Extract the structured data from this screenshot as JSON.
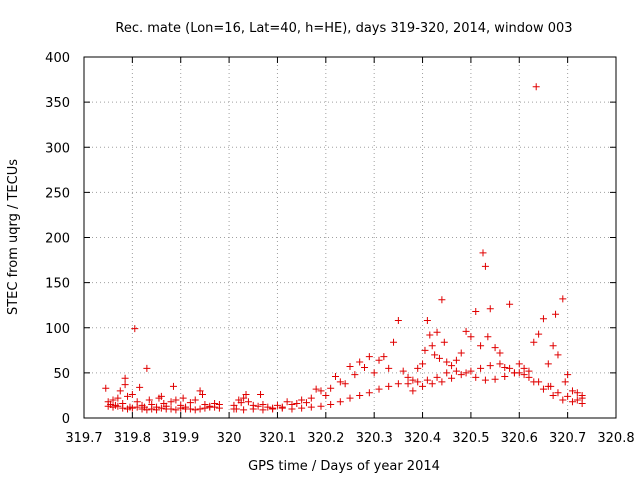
{
  "chart_data": {
    "type": "scatter",
    "title": "Rec. mate (Lon=16, Lat=40, h=HE), days 319-320, 2014, window 003",
    "xlabel": "GPS time / Days of year 2014",
    "ylabel": "STEC from uqrg / TECUs",
    "xlim": [
      319.7,
      320.8
    ],
    "ylim": [
      0,
      400
    ],
    "xticks": [
      "319.7",
      "319.8",
      "319.9",
      "320",
      "320.1",
      "320.2",
      "320.3",
      "320.4",
      "320.5",
      "320.6",
      "320.7",
      "320.8"
    ],
    "yticks": [
      "0",
      "50",
      "100",
      "150",
      "200",
      "250",
      "300",
      "350",
      "400"
    ],
    "grid": true,
    "marker": "+",
    "color": "#e00000",
    "series": [
      {
        "name": "STEC",
        "points": [
          [
            319.745,
            33
          ],
          [
            319.75,
            18
          ],
          [
            319.755,
            15
          ],
          [
            319.76,
            20
          ],
          [
            319.765,
            14
          ],
          [
            319.77,
            22
          ],
          [
            319.775,
            30
          ],
          [
            319.78,
            16
          ],
          [
            319.785,
            37
          ],
          [
            319.785,
            44
          ],
          [
            319.79,
            24
          ],
          [
            319.795,
            12
          ],
          [
            319.8,
            26
          ],
          [
            319.805,
            99
          ],
          [
            319.81,
            18
          ],
          [
            319.815,
            34
          ],
          [
            319.82,
            14
          ],
          [
            319.825,
            12
          ],
          [
            319.83,
            55
          ],
          [
            319.835,
            20
          ],
          [
            319.84,
            15
          ],
          [
            319.85,
            12
          ],
          [
            319.855,
            22
          ],
          [
            319.86,
            24
          ],
          [
            319.865,
            16
          ],
          [
            319.87,
            13
          ],
          [
            319.88,
            18
          ],
          [
            319.885,
            35
          ],
          [
            319.89,
            20
          ],
          [
            319.9,
            14
          ],
          [
            319.905,
            22
          ],
          [
            319.91,
            12
          ],
          [
            319.92,
            17
          ],
          [
            319.93,
            20
          ],
          [
            319.94,
            30
          ],
          [
            319.945,
            26
          ],
          [
            319.95,
            15
          ],
          [
            319.96,
            13
          ],
          [
            319.97,
            16
          ],
          [
            319.98,
            15
          ],
          [
            319.75,
            13
          ],
          [
            319.76,
            12
          ],
          [
            319.77,
            13
          ],
          [
            319.78,
            11
          ],
          [
            319.79,
            10
          ],
          [
            319.8,
            11
          ],
          [
            319.81,
            12
          ],
          [
            319.82,
            10
          ],
          [
            319.83,
            9
          ],
          [
            319.84,
            10
          ],
          [
            319.85,
            9
          ],
          [
            319.86,
            11
          ],
          [
            319.87,
            10
          ],
          [
            319.88,
            10
          ],
          [
            319.89,
            9
          ],
          [
            319.9,
            11
          ],
          [
            319.91,
            10
          ],
          [
            319.92,
            10
          ],
          [
            319.93,
            9
          ],
          [
            319.94,
            10
          ],
          [
            319.95,
            11
          ],
          [
            319.96,
            12
          ],
          [
            319.97,
            12
          ],
          [
            319.98,
            11
          ],
          [
            320.01,
            14
          ],
          [
            320.015,
            10
          ],
          [
            320.02,
            20
          ],
          [
            320.025,
            17
          ],
          [
            320.03,
            22
          ],
          [
            320.035,
            26
          ],
          [
            320.04,
            18
          ],
          [
            320.05,
            14
          ],
          [
            320.06,
            13
          ],
          [
            320.065,
            26
          ],
          [
            320.07,
            15
          ],
          [
            320.08,
            12
          ],
          [
            320.09,
            11
          ],
          [
            320.1,
            14
          ],
          [
            320.11,
            12
          ],
          [
            320.12,
            18
          ],
          [
            320.13,
            15
          ],
          [
            320.14,
            16
          ],
          [
            320.15,
            20
          ],
          [
            320.16,
            17
          ],
          [
            320.17,
            22
          ],
          [
            320.18,
            32
          ],
          [
            320.19,
            30
          ],
          [
            320.2,
            25
          ],
          [
            320.21,
            33
          ],
          [
            320.22,
            46
          ],
          [
            320.23,
            40
          ],
          [
            320.24,
            38
          ],
          [
            320.25,
            57
          ],
          [
            320.26,
            48
          ],
          [
            320.27,
            62
          ],
          [
            320.28,
            56
          ],
          [
            320.29,
            68
          ],
          [
            320.3,
            50
          ],
          [
            320.31,
            64
          ],
          [
            320.32,
            68
          ],
          [
            320.33,
            55
          ],
          [
            320.34,
            84
          ],
          [
            320.35,
            108
          ],
          [
            320.36,
            52
          ],
          [
            320.01,
            10
          ],
          [
            320.03,
            9
          ],
          [
            320.05,
            10
          ],
          [
            320.07,
            9
          ],
          [
            320.09,
            10
          ],
          [
            320.11,
            11
          ],
          [
            320.13,
            10
          ],
          [
            320.15,
            11
          ],
          [
            320.17,
            12
          ],
          [
            320.19,
            13
          ],
          [
            320.21,
            15
          ],
          [
            320.23,
            18
          ],
          [
            320.25,
            22
          ],
          [
            320.27,
            25
          ],
          [
            320.29,
            28
          ],
          [
            320.31,
            32
          ],
          [
            320.33,
            35
          ],
          [
            320.35,
            38
          ],
          [
            320.37,
            45
          ],
          [
            320.38,
            42
          ],
          [
            320.39,
            55
          ],
          [
            320.4,
            60
          ],
          [
            320.405,
            75
          ],
          [
            320.41,
            108
          ],
          [
            320.415,
            92
          ],
          [
            320.42,
            80
          ],
          [
            320.425,
            70
          ],
          [
            320.43,
            95
          ],
          [
            320.435,
            66
          ],
          [
            320.44,
            131
          ],
          [
            320.445,
            84
          ],
          [
            320.45,
            62
          ],
          [
            320.46,
            58
          ],
          [
            320.47,
            64
          ],
          [
            320.48,
            72
          ],
          [
            320.49,
            96
          ],
          [
            320.5,
            90
          ],
          [
            320.51,
            118
          ],
          [
            320.52,
            80
          ],
          [
            320.525,
            183
          ],
          [
            320.53,
            168
          ],
          [
            320.535,
            90
          ],
          [
            320.54,
            121
          ],
          [
            320.55,
            78
          ],
          [
            320.56,
            72
          ],
          [
            320.57,
            56
          ],
          [
            320.58,
            126
          ],
          [
            320.59,
            50
          ],
          [
            320.6,
            60
          ],
          [
            320.61,
            55
          ],
          [
            320.62,
            52
          ],
          [
            320.63,
            84
          ],
          [
            320.635,
            367
          ],
          [
            320.64,
            93
          ],
          [
            320.65,
            110
          ],
          [
            320.66,
            60
          ],
          [
            320.665,
            35
          ],
          [
            320.67,
            80
          ],
          [
            320.675,
            115
          ],
          [
            320.68,
            70
          ],
          [
            320.69,
            132
          ],
          [
            320.695,
            40
          ],
          [
            320.7,
            48
          ],
          [
            320.71,
            30
          ],
          [
            320.72,
            28
          ],
          [
            320.73,
            25
          ],
          [
            320.37,
            38
          ],
          [
            320.39,
            40
          ],
          [
            320.41,
            42
          ],
          [
            320.43,
            45
          ],
          [
            320.45,
            50
          ],
          [
            320.47,
            52
          ],
          [
            320.49,
            50
          ],
          [
            320.51,
            45
          ],
          [
            320.53,
            42
          ],
          [
            320.55,
            43
          ],
          [
            320.57,
            46
          ],
          [
            320.59,
            50
          ],
          [
            320.61,
            48
          ],
          [
            320.63,
            40
          ],
          [
            320.65,
            32
          ],
          [
            320.67,
            25
          ],
          [
            320.69,
            20
          ],
          [
            320.71,
            18
          ],
          [
            320.73,
            16
          ],
          [
            320.38,
            30
          ],
          [
            320.4,
            35
          ],
          [
            320.42,
            38
          ],
          [
            320.44,
            40
          ],
          [
            320.46,
            44
          ],
          [
            320.48,
            48
          ],
          [
            320.5,
            52
          ],
          [
            320.52,
            55
          ],
          [
            320.54,
            58
          ],
          [
            320.56,
            60
          ],
          [
            320.58,
            55
          ],
          [
            320.6,
            50
          ],
          [
            320.62,
            45
          ],
          [
            320.64,
            40
          ],
          [
            320.66,
            35
          ],
          [
            320.68,
            28
          ],
          [
            320.7,
            24
          ],
          [
            320.72,
            20
          ],
          [
            320.73,
            22
          ]
        ]
      }
    ]
  }
}
